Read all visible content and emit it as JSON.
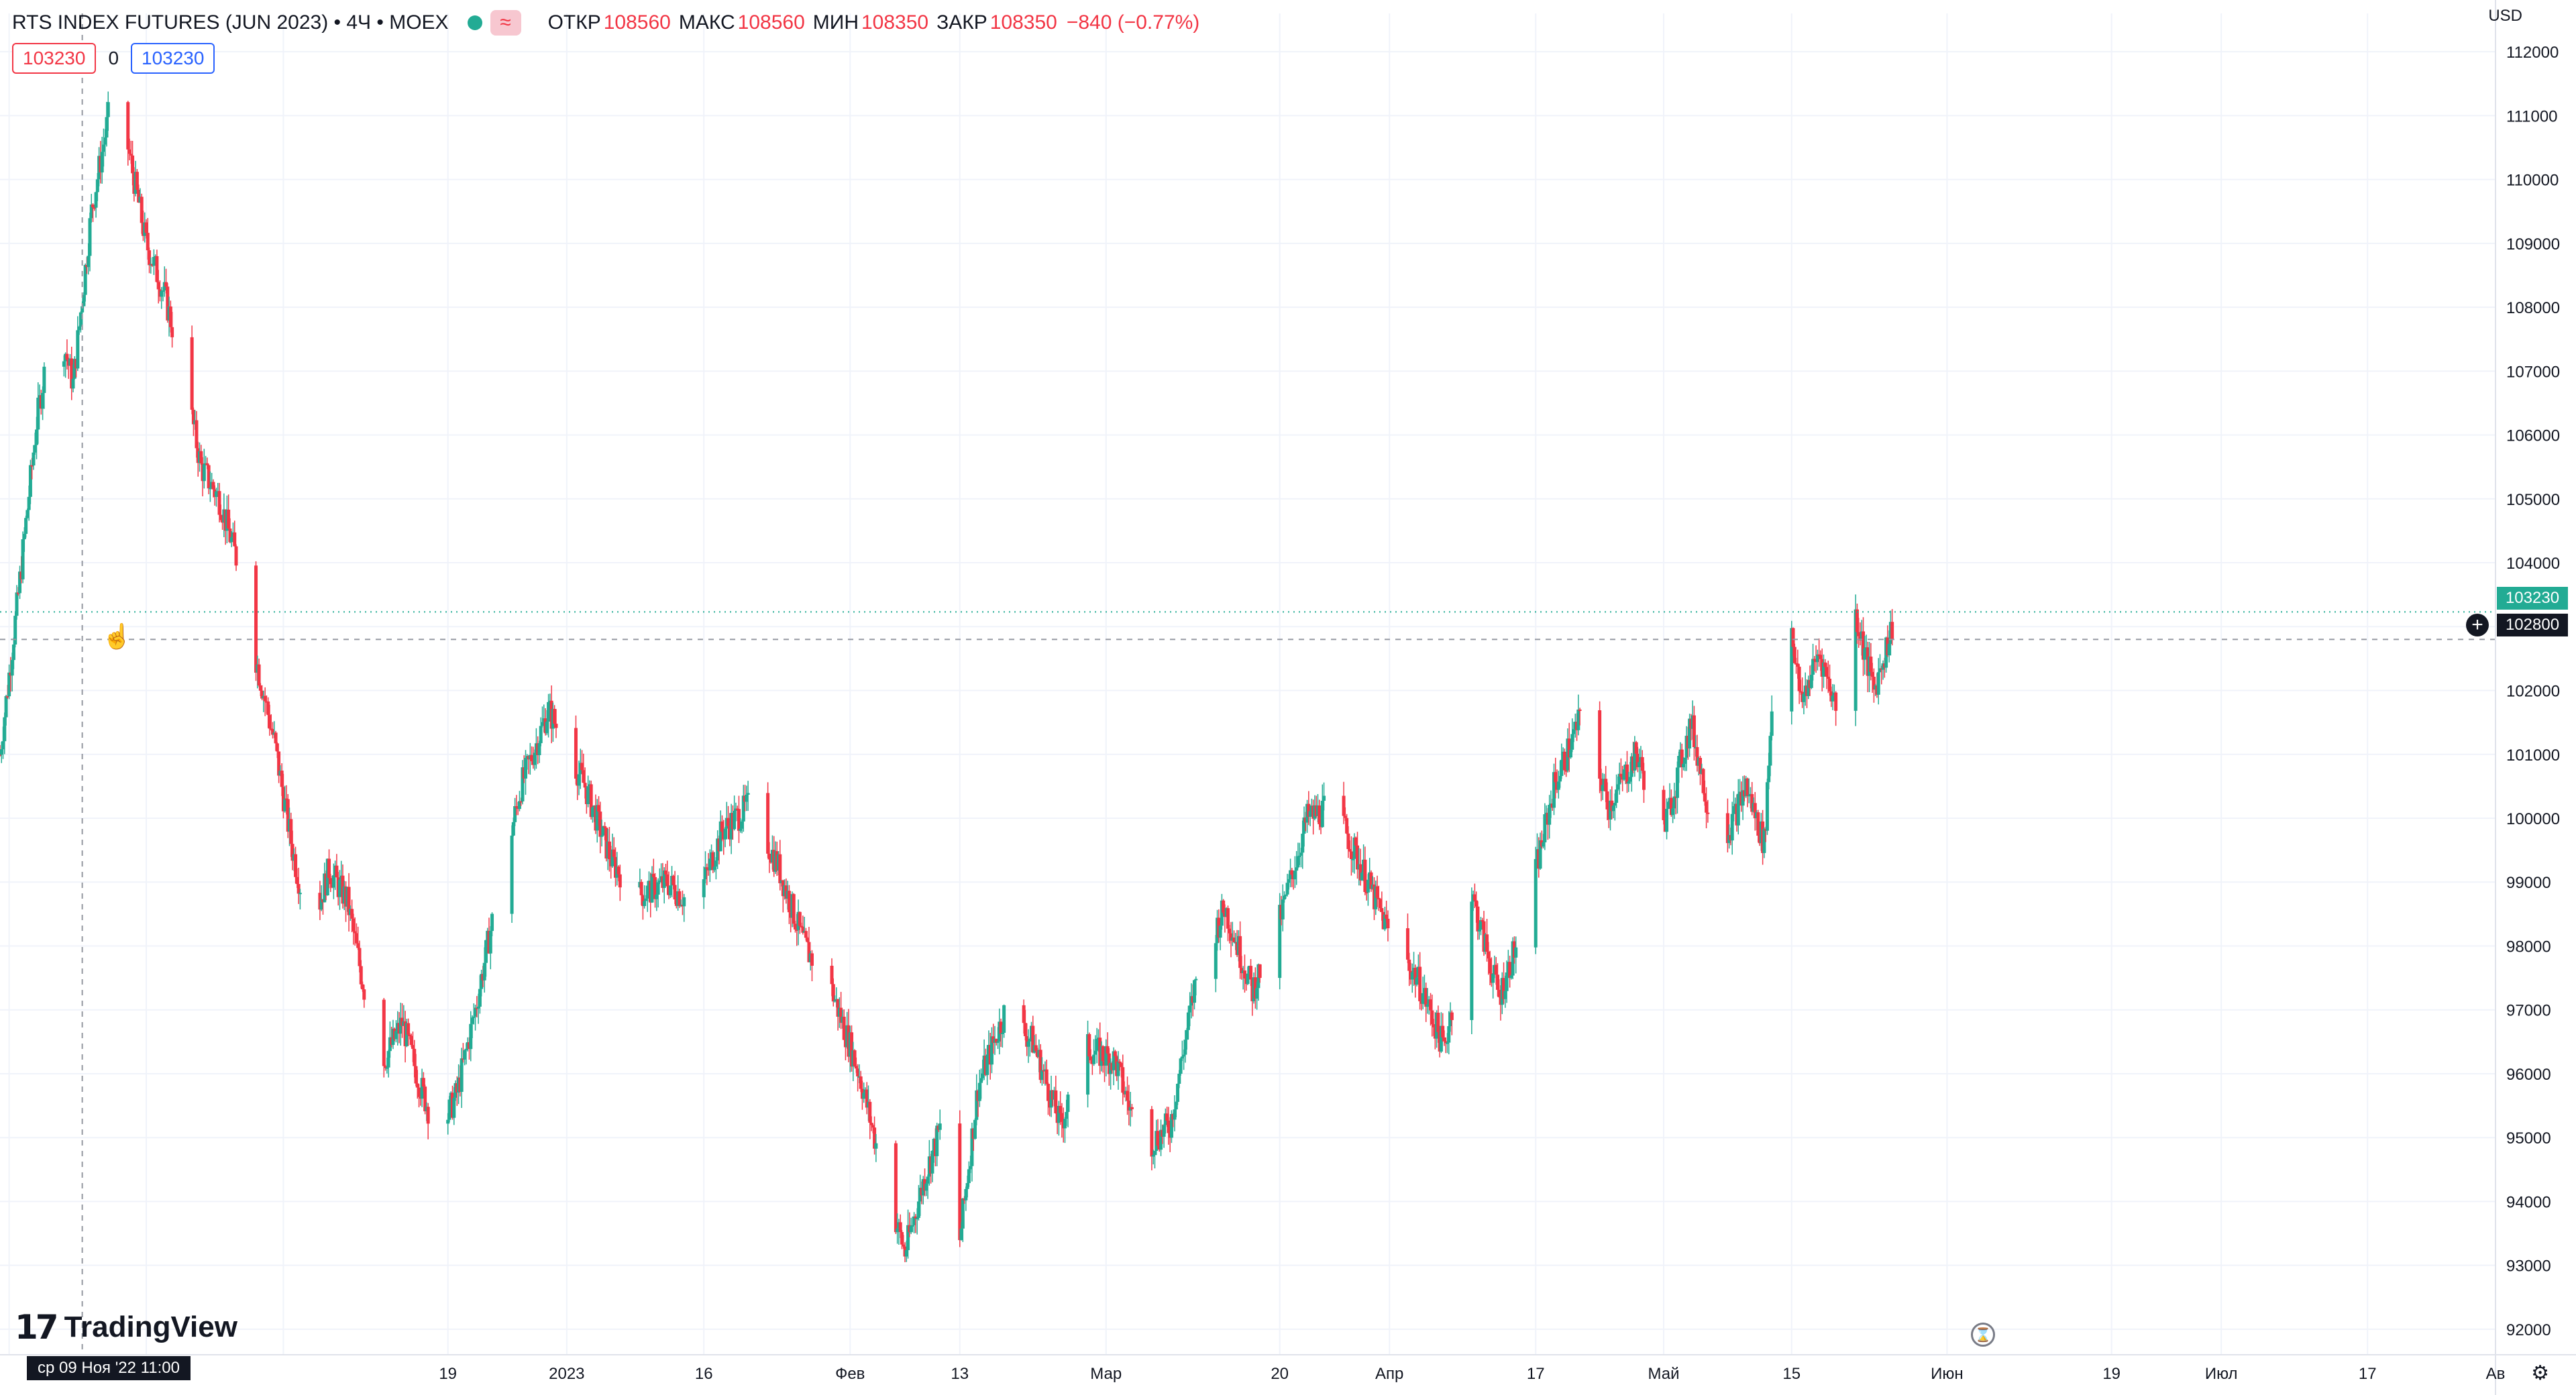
{
  "header": {
    "symbol_title": "RTS INDEX FUTURES (JUN 2023) • 4Ч • MOEX",
    "badge_glyph": "≈",
    "open_label": "ОТКР",
    "open_value": "108560",
    "high_label": "МАКС",
    "high_value": "108560",
    "low_label": "МИН",
    "low_value": "108350",
    "close_label": "ЗАКР",
    "close_value": "108350",
    "change": "−840 (−0.77%)"
  },
  "order_widget": {
    "sell": "103230",
    "spread": "0",
    "buy": "103230"
  },
  "price_scale": {
    "currency": "USD",
    "last_price_tag": "103230",
    "crosshair_price_tag": "102800",
    "add_icon": "plus-circle-icon"
  },
  "crosshair_time_label": "ср 09 Ноя '22   11:00",
  "logo_text": "TradingView",
  "logo_mark": "17",
  "colors": {
    "up": "#22ab94",
    "down": "#f23645",
    "grid": "#f0f3fa",
    "axis_text": "#131722"
  },
  "chart_data": {
    "type": "candlestick",
    "title": "RTS INDEX FUTURES (JUN 2023) • 4Ч • MOEX",
    "ylim": [
      91600,
      112600
    ],
    "y_ticks": [
      92000,
      93000,
      94000,
      95000,
      96000,
      97000,
      98000,
      99000,
      100000,
      101000,
      102000,
      103000,
      104000,
      105000,
      106000,
      107000,
      108000,
      109000,
      110000,
      111000,
      112000
    ],
    "x_ticks": [
      "19",
      "2023",
      "16",
      "Фев",
      "13",
      "Мар",
      "20",
      "Апр",
      "17",
      "Май",
      "15",
      "Июн",
      "19",
      "Июл",
      "17",
      "Ав"
    ],
    "x_range": [
      "2022-10-31",
      "2023-07-31"
    ],
    "grid": true,
    "last_price": 103230,
    "crosshair": {
      "date": "2022-11-09",
      "price": 102800
    },
    "price_path": [
      [
        "2022-10-31",
        101000
      ],
      [
        "2022-11-02",
        103500
      ],
      [
        "2022-11-04",
        106200
      ],
      [
        "2022-11-06",
        108000
      ],
      [
        "2022-11-08",
        106800
      ],
      [
        "2022-11-10",
        109500
      ],
      [
        "2022-11-12",
        111100
      ],
      [
        "2022-11-14",
        110500
      ],
      [
        "2022-11-16",
        109000
      ],
      [
        "2022-11-18",
        108200
      ],
      [
        "2022-11-20",
        107000
      ],
      [
        "2022-11-22",
        105500
      ],
      [
        "2022-11-24",
        105000
      ],
      [
        "2022-11-26",
        104000
      ],
      [
        "2022-11-28",
        102500
      ],
      [
        "2022-11-30",
        101200
      ],
      [
        "2022-12-02",
        99500
      ],
      [
        "2022-12-04",
        98200
      ],
      [
        "2022-12-06",
        99200
      ],
      [
        "2022-12-08",
        98700
      ],
      [
        "2022-12-10",
        97200
      ],
      [
        "2022-12-12",
        96200
      ],
      [
        "2022-12-14",
        96800
      ],
      [
        "2022-12-16",
        95800
      ],
      [
        "2022-12-18",
        95000
      ],
      [
        "2022-12-20",
        95700
      ],
      [
        "2022-12-22",
        97000
      ],
      [
        "2022-12-24",
        98500
      ],
      [
        "2022-12-27",
        100500
      ],
      [
        "2022-12-30",
        101700
      ],
      [
        "2023-01-03",
        100500
      ],
      [
        "2023-01-06",
        99300
      ],
      [
        "2023-01-09",
        98800
      ],
      [
        "2023-01-12",
        99000
      ],
      [
        "2023-01-15",
        98600
      ],
      [
        "2023-01-18",
        99800
      ],
      [
        "2023-01-21",
        100200
      ],
      [
        "2023-01-24",
        99300
      ],
      [
        "2023-01-27",
        98000
      ],
      [
        "2023-01-30",
        97300
      ],
      [
        "2023-02-02",
        96000
      ],
      [
        "2023-02-05",
        94200
      ],
      [
        "2023-02-07",
        93200
      ],
      [
        "2023-02-09",
        94300
      ],
      [
        "2023-02-11",
        95200
      ],
      [
        "2023-02-13",
        93400
      ],
      [
        "2023-02-15",
        95800
      ],
      [
        "2023-02-18",
        97000
      ],
      [
        "2023-02-21",
        96500
      ],
      [
        "2023-02-24",
        95200
      ],
      [
        "2023-02-27",
        96400
      ],
      [
        "2023-03-02",
        96200
      ],
      [
        "2023-03-05",
        94800
      ],
      [
        "2023-03-08",
        95200
      ],
      [
        "2023-03-11",
        97600
      ],
      [
        "2023-03-14",
        98600
      ],
      [
        "2023-03-17",
        97300
      ],
      [
        "2023-03-20",
        98400
      ],
      [
        "2023-03-23",
        100000
      ],
      [
        "2023-03-26",
        100200
      ],
      [
        "2023-03-29",
        99200
      ],
      [
        "2023-04-01",
        98200
      ],
      [
        "2023-04-04",
        97500
      ],
      [
        "2023-04-07",
        96400
      ],
      [
        "2023-04-10",
        98800
      ],
      [
        "2023-04-13",
        97200
      ],
      [
        "2023-04-16",
        98500
      ],
      [
        "2023-04-19",
        100500
      ],
      [
        "2023-04-22",
        101600
      ],
      [
        "2023-04-25",
        100200
      ],
      [
        "2023-04-28",
        101000
      ],
      [
        "2023-05-01",
        99800
      ],
      [
        "2023-05-04",
        101500
      ],
      [
        "2023-05-07",
        99400
      ],
      [
        "2023-05-10",
        100500
      ],
      [
        "2023-05-12",
        99600
      ],
      [
        "2023-05-14",
        104800
      ],
      [
        "2023-05-15",
        103000
      ],
      [
        "2023-05-16",
        101800
      ],
      [
        "2023-05-18",
        102600
      ],
      [
        "2023-05-20",
        101700
      ],
      [
        "2023-05-22",
        103200
      ],
      [
        "2023-05-24",
        102000
      ],
      [
        "2023-05-26",
        103000
      ]
    ]
  }
}
